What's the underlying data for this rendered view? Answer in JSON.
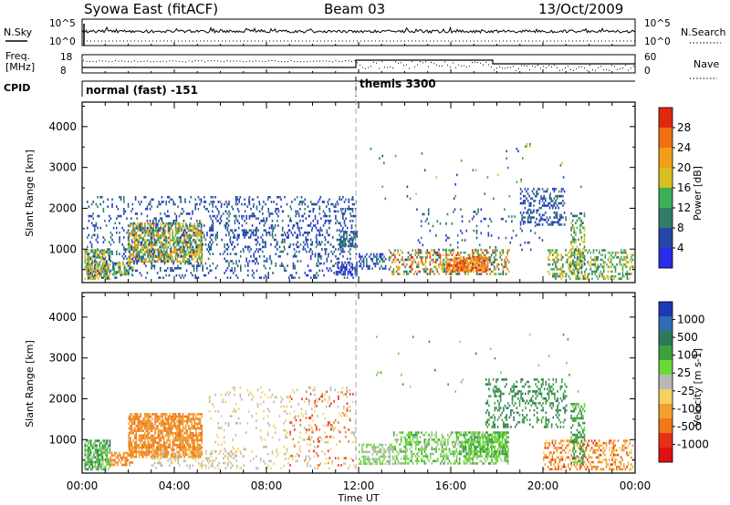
{
  "header": {
    "station": "Syowa East (fitACF)",
    "beam": "Beam 03",
    "date": "13/Oct/2009"
  },
  "top_panels": {
    "nsky_label": "N.Sky",
    "nsky_ticks": [
      "10^5",
      "10^0"
    ],
    "nsearch_label": "N.Search",
    "nsearch_ticks": [
      "10^5",
      "10^0"
    ],
    "freq_label_1": "Freq.",
    "freq_label_2": "[MHz]",
    "freq_ticks": [
      "18",
      "8"
    ],
    "nave_label": "Nave",
    "nave_ticks": [
      "60",
      "0"
    ],
    "cpid_label": "CPID",
    "cpid_segments": [
      {
        "label": "normal (fast) -151",
        "start_hour": 0,
        "end_hour": 12
      },
      {
        "label": "themis 3300",
        "start_hour": 12,
        "end_hour": 24
      }
    ]
  },
  "colors": {
    "power_scale": [
      "#2a2ae8",
      "#2545a8",
      "#2f7d6a",
      "#3ab05a",
      "#d7c020",
      "#f0a018",
      "#f07010",
      "#e02810"
    ],
    "velocity_scale": [
      "#2038b8",
      "#2f6db0",
      "#2d7a5a",
      "#3fa040",
      "#6ad838",
      "#b8b8b8",
      "#f6d060",
      "#f0a030",
      "#f07818",
      "#e83018",
      "#e01010"
    ]
  },
  "chart_data": [
    {
      "type": "heatmap",
      "title": "Power",
      "xlabel": "Time UT",
      "ylabel": "Slant Range [km]",
      "xlim_hours": [
        0,
        24
      ],
      "ylim_km": [
        180,
        4600
      ],
      "x_tick_labels": [
        "00:00",
        "04:00",
        "08:00",
        "12:00",
        "16:00",
        "20:00",
        "00:00"
      ],
      "y_ticks": [
        1000,
        2000,
        3000,
        4000
      ],
      "y_tick_labels": [
        "1000",
        "2000",
        "3000",
        "4000"
      ],
      "colorbar_label": "Power [dB]",
      "colorbar_ticks": [
        "4",
        "8",
        "12",
        "16",
        "20",
        "24",
        "28"
      ],
      "colorbar_range": [
        0,
        32
      ],
      "clusters": [
        {
          "t0": 0.1,
          "t1": 1.2,
          "r0": 300,
          "r1": 1000,
          "v0": 10,
          "v1": 24,
          "density": 0.75
        },
        {
          "t0": 1.3,
          "t1": 2.2,
          "r0": 400,
          "r1": 700,
          "v0": 8,
          "v1": 20,
          "density": 0.5
        },
        {
          "t0": 2.0,
          "t1": 5.2,
          "r0": 700,
          "r1": 1650,
          "v0": 8,
          "v1": 26,
          "density": 0.7
        },
        {
          "t0": 0.2,
          "t1": 11.9,
          "r0": 300,
          "r1": 2300,
          "v0": 3,
          "v1": 10,
          "density": 0.16
        },
        {
          "t0": 5.5,
          "t1": 11.9,
          "r0": 1000,
          "r1": 2300,
          "v0": 3,
          "v1": 9,
          "density": 0.12
        },
        {
          "t0": 11.2,
          "t1": 11.9,
          "r0": 1100,
          "r1": 1450,
          "v0": 4,
          "v1": 12,
          "density": 0.6
        },
        {
          "t0": 11.0,
          "t1": 11.9,
          "r0": 400,
          "r1": 700,
          "v0": 2,
          "v1": 7,
          "density": 0.6
        },
        {
          "t0": 12.0,
          "t1": 13.2,
          "r0": 500,
          "r1": 900,
          "v0": 3,
          "v1": 10,
          "density": 0.45
        },
        {
          "t0": 13.3,
          "t1": 18.5,
          "r0": 400,
          "r1": 1000,
          "v0": 6,
          "v1": 30,
          "density": 0.45
        },
        {
          "t0": 15.8,
          "t1": 17.6,
          "r0": 500,
          "r1": 800,
          "v0": 20,
          "v1": 30,
          "density": 0.8
        },
        {
          "t0": 14.5,
          "t1": 20.0,
          "r0": 1000,
          "r1": 2000,
          "v0": 3,
          "v1": 12,
          "density": 0.08
        },
        {
          "t0": 19.0,
          "t1": 21.0,
          "r0": 1600,
          "r1": 2500,
          "v0": 3,
          "v1": 10,
          "density": 0.3
        },
        {
          "t0": 20.2,
          "t1": 23.9,
          "r0": 300,
          "r1": 1000,
          "v0": 8,
          "v1": 22,
          "density": 0.4
        },
        {
          "t0": 21.2,
          "t1": 21.8,
          "r0": 400,
          "r1": 1900,
          "v0": 6,
          "v1": 20,
          "density": 0.45
        },
        {
          "t0": 12.5,
          "t1": 22.0,
          "r0": 2200,
          "r1": 3600,
          "v0": 3,
          "v1": 20,
          "density": 0.01
        }
      ]
    },
    {
      "type": "heatmap",
      "title": "Velocity",
      "xlabel": "Time UT",
      "ylabel": "Slant Range [km]",
      "xlim_hours": [
        0,
        24
      ],
      "ylim_km": [
        180,
        4600
      ],
      "x_tick_labels": [
        "00:00",
        "04:00",
        "08:00",
        "12:00",
        "16:00",
        "20:00",
        "00:00"
      ],
      "y_ticks": [
        1000,
        2000,
        3000,
        4000
      ],
      "y_tick_labels": [
        "1000",
        "2000",
        "3000",
        "4000"
      ],
      "colorbar_label": "Velocity [m s-1]",
      "colorbar_ticks": [
        "1000",
        "500",
        "100",
        "25",
        "-25",
        "-100",
        "-500",
        "-1000"
      ],
      "clusters": [
        {
          "t0": 0.1,
          "t1": 1.2,
          "r0": 300,
          "r1": 1000,
          "v0": 2,
          "v1": 5,
          "density": 0.75
        },
        {
          "t0": 1.2,
          "t1": 2.2,
          "r0": 400,
          "r1": 700,
          "v0": 7,
          "v1": 8,
          "density": 0.55
        },
        {
          "t0": 2.0,
          "t1": 5.2,
          "r0": 600,
          "r1": 1650,
          "v0": 7,
          "v1": 8,
          "density": 0.75
        },
        {
          "t0": 3.0,
          "t1": 7.0,
          "r0": 300,
          "r1": 800,
          "v0": 5,
          "v1": 6,
          "density": 0.2
        },
        {
          "t0": 5.5,
          "t1": 11.9,
          "r0": 300,
          "r1": 2300,
          "v0": 5,
          "v1": 6,
          "density": 0.1
        },
        {
          "t0": 9.0,
          "t1": 11.9,
          "r0": 400,
          "r1": 2200,
          "v0": 8,
          "v1": 9,
          "density": 0.05
        },
        {
          "t0": 12.0,
          "t1": 13.5,
          "r0": 400,
          "r1": 900,
          "v0": 4,
          "v1": 5,
          "density": 0.55
        },
        {
          "t0": 13.5,
          "t1": 18.5,
          "r0": 400,
          "r1": 1200,
          "v0": 3,
          "v1": 5,
          "density": 0.45
        },
        {
          "t0": 16.5,
          "t1": 18.5,
          "r0": 600,
          "r1": 1200,
          "v0": 3,
          "v1": 4,
          "density": 0.6
        },
        {
          "t0": 17.5,
          "t1": 21.0,
          "r0": 1300,
          "r1": 2500,
          "v0": 2,
          "v1": 3,
          "density": 0.3
        },
        {
          "t0": 20.0,
          "t1": 23.9,
          "r0": 300,
          "r1": 1000,
          "v0": 6,
          "v1": 9,
          "density": 0.4
        },
        {
          "t0": 21.2,
          "t1": 21.8,
          "r0": 400,
          "r1": 1900,
          "v0": 2,
          "v1": 4,
          "density": 0.45
        },
        {
          "t0": 12.5,
          "t1": 22.0,
          "r0": 2200,
          "r1": 3600,
          "v0": 2,
          "v1": 5,
          "density": 0.01
        }
      ]
    }
  ]
}
